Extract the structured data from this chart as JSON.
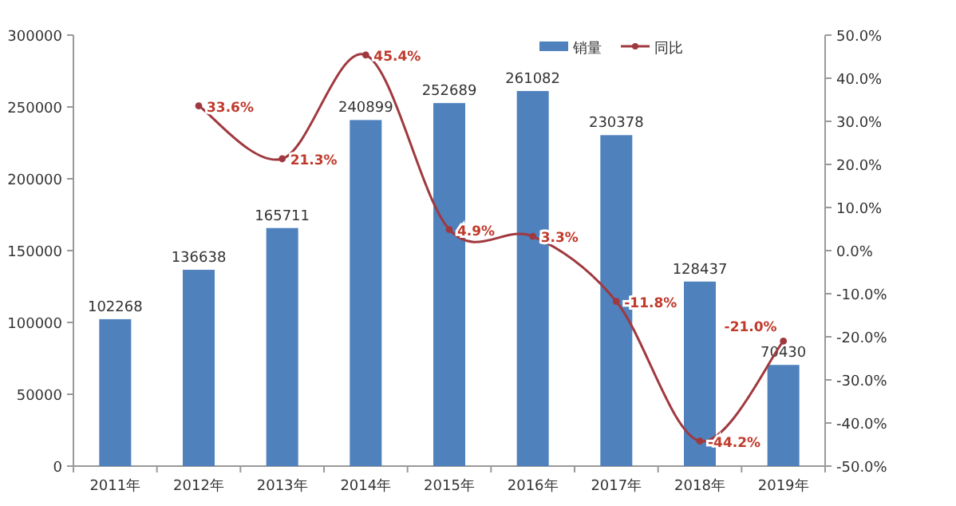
{
  "chart_data": {
    "type": "bar",
    "categories": [
      "2011年",
      "2012年",
      "2013年",
      "2014年",
      "2015年",
      "2016年",
      "2017年",
      "2018年",
      "2019年"
    ],
    "series": [
      {
        "name": "销量",
        "color": "#4f81bd",
        "values": [
          102268,
          136638,
          165711,
          240899,
          252689,
          261082,
          230378,
          128437,
          70430
        ],
        "value_labels": [
          "102268",
          "136638",
          "165711",
          "240899",
          "252689",
          "261082",
          "230378",
          "128437",
          "70430"
        ]
      },
      {
        "name": "同比",
        "type": "line",
        "axis": "y2",
        "color": "#a0393f",
        "marker": "circle",
        "values": [
          null,
          33.6,
          21.3,
          45.4,
          4.9,
          3.3,
          -11.8,
          -44.2,
          -21.0
        ],
        "value_labels": [
          null,
          "33.6%",
          "21.3%",
          "45.4%",
          "4.9%",
          "3.3%",
          "-11.8%",
          "-44.2%",
          "-21.0%"
        ]
      }
    ],
    "ylim": [
      0,
      300000
    ],
    "yticks": [
      0,
      50000,
      100000,
      150000,
      200000,
      250000,
      300000
    ],
    "y2lim": [
      -50,
      50
    ],
    "y2ticks": [
      {
        "value": -50,
        "label": "-50.0%"
      },
      {
        "value": -40,
        "label": "-40.0%"
      },
      {
        "value": -30,
        "label": "-30.0%"
      },
      {
        "value": -20,
        "label": "-20.0%"
      },
      {
        "value": -10,
        "label": "-10.0%"
      },
      {
        "value": 0,
        "label": "0.0%"
      },
      {
        "value": 10,
        "label": "10.0%"
      },
      {
        "value": 20,
        "label": "20.0%"
      },
      {
        "value": 30,
        "label": "30.0%"
      },
      {
        "value": 40,
        "label": "40.0%"
      },
      {
        "value": 50,
        "label": "50.0%"
      }
    ],
    "legend": "top right",
    "grid": false
  }
}
